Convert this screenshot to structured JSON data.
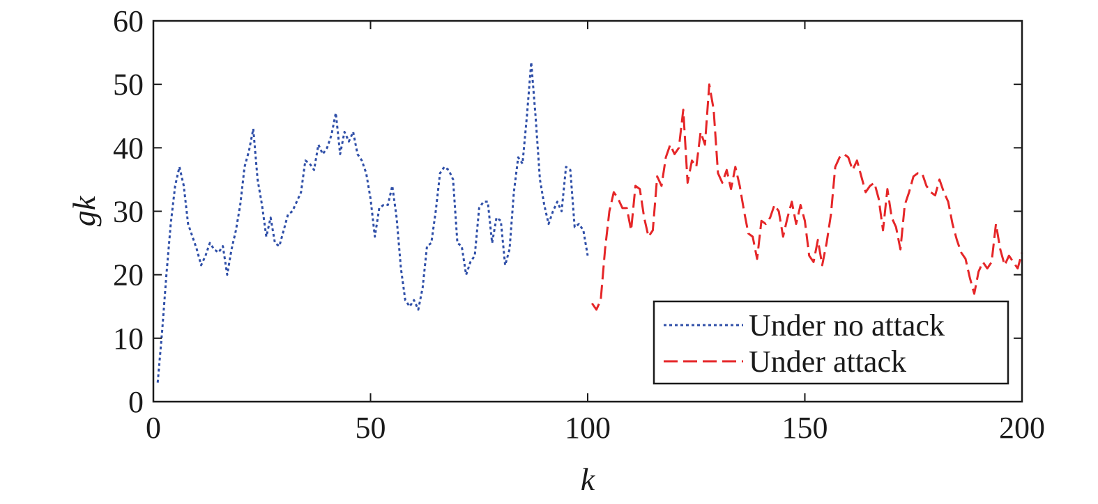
{
  "chart_data": {
    "type": "line",
    "title": "",
    "xlabel": "k",
    "ylabel": "gk",
    "xlim": [
      0,
      200
    ],
    "ylim": [
      0,
      60
    ],
    "xticks": [
      0,
      50,
      100,
      150,
      200
    ],
    "yticks": [
      0,
      10,
      20,
      30,
      40,
      50,
      60
    ],
    "xtick_labels": [
      "0",
      "50",
      "100",
      "150",
      "200"
    ],
    "ytick_labels": [
      "0",
      "10",
      "20",
      "30",
      "40",
      "50",
      "60"
    ],
    "grid": false,
    "legend_position": "bottom-right",
    "series": [
      {
        "name": "Under no attack",
        "color": "#2f4fa8",
        "style": "dotted",
        "x": [
          1,
          2,
          3,
          4,
          5,
          6,
          7,
          8,
          9,
          10,
          11,
          12,
          13,
          14,
          15,
          16,
          17,
          18,
          19,
          20,
          21,
          22,
          23,
          24,
          25,
          26,
          27,
          28,
          29,
          30,
          31,
          32,
          33,
          34,
          35,
          36,
          37,
          38,
          39,
          40,
          41,
          42,
          43,
          44,
          45,
          46,
          47,
          48,
          49,
          50,
          51,
          52,
          53,
          54,
          55,
          56,
          57,
          58,
          59,
          60,
          61,
          62,
          63,
          64,
          65,
          66,
          67,
          68,
          69,
          70,
          71,
          72,
          73,
          74,
          75,
          76,
          77,
          78,
          79,
          80,
          81,
          82,
          83,
          84,
          85,
          86,
          87,
          88,
          89,
          90,
          91,
          92,
          93,
          94,
          95,
          96,
          97,
          98,
          99,
          100
        ],
        "y": [
          3,
          11,
          20,
          28,
          34,
          37,
          34,
          28,
          26,
          24,
          21.5,
          23,
          25,
          24,
          23.5,
          24.5,
          20,
          24,
          27,
          31,
          37,
          39.5,
          43,
          35,
          31,
          26,
          29,
          25,
          24.5,
          27,
          29.5,
          30,
          31.5,
          33,
          38,
          37.5,
          36.5,
          40.5,
          39,
          40,
          42,
          45.5,
          39,
          42.5,
          41,
          42.5,
          39,
          38,
          36,
          32,
          26,
          30.5,
          31,
          31,
          34,
          29,
          21,
          16,
          15,
          16,
          14.5,
          18,
          24.5,
          25,
          30,
          36,
          37,
          36.5,
          35,
          25,
          24.5,
          20,
          22,
          23,
          30.5,
          31.5,
          31.5,
          25,
          29,
          28.5,
          21.5,
          24,
          33,
          38.5,
          37.5,
          45,
          53.5,
          45,
          35,
          31,
          28,
          30,
          31.5,
          30,
          37,
          36.5,
          27.5,
          28,
          27,
          23
        ]
      },
      {
        "name": "Under attack",
        "color": "#e52628",
        "style": "dashed",
        "x": [
          101,
          102,
          103,
          104,
          105,
          106,
          107,
          108,
          109,
          110,
          111,
          112,
          113,
          114,
          115,
          116,
          117,
          118,
          119,
          120,
          121,
          122,
          123,
          124,
          125,
          126,
          127,
          128,
          129,
          130,
          131,
          132,
          133,
          134,
          135,
          136,
          137,
          138,
          139,
          140,
          141,
          142,
          143,
          144,
          145,
          146,
          147,
          148,
          149,
          150,
          151,
          152,
          153,
          154,
          155,
          156,
          157,
          158,
          159,
          160,
          161,
          162,
          163,
          164,
          165,
          166,
          167,
          168,
          169,
          170,
          171,
          172,
          173,
          174,
          175,
          176,
          177,
          178,
          179,
          180,
          181,
          182,
          183,
          184,
          185,
          186,
          187,
          188,
          189,
          190,
          191,
          192,
          193,
          194,
          195,
          196,
          197,
          198,
          199,
          200
        ],
        "y": [
          15.5,
          14.5,
          16,
          24,
          30,
          33,
          32,
          30.5,
          30.5,
          27,
          34,
          33.5,
          29,
          26,
          27,
          35.5,
          34,
          38.5,
          40.5,
          39,
          40,
          46,
          34.5,
          38,
          37,
          42.5,
          40.5,
          50,
          46,
          36,
          34.5,
          36.5,
          33.5,
          37,
          34,
          30,
          26.5,
          26,
          22.5,
          28.5,
          28,
          29,
          31,
          30,
          26,
          29,
          31.5,
          28,
          31,
          28.5,
          23,
          22,
          25.5,
          21.5,
          25,
          29.5,
          37,
          38.5,
          39,
          38.5,
          36.5,
          38,
          35.5,
          33,
          34,
          34.5,
          32,
          27,
          33.5,
          29,
          27.5,
          24,
          31,
          33,
          35.5,
          36,
          36,
          34,
          33,
          32.5,
          35,
          33,
          31.5,
          28,
          25.5,
          23.5,
          22.5,
          19.5,
          17,
          20.5,
          22,
          21,
          22,
          28,
          24,
          21.5,
          23,
          22,
          21,
          23.5
        ]
      }
    ]
  }
}
